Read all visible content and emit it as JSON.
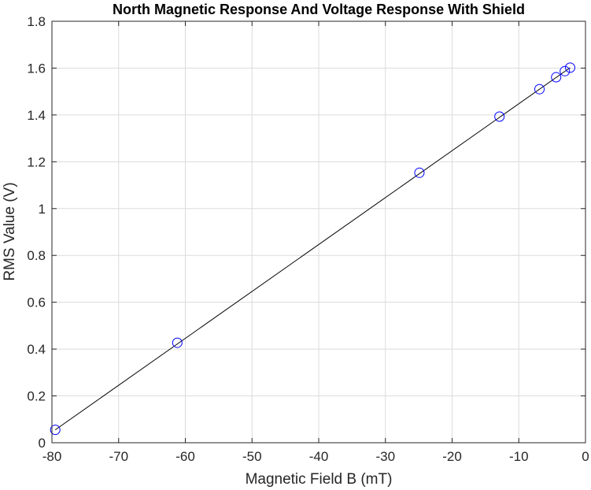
{
  "chart_data": {
    "type": "scatter",
    "title": "North Magnetic Response And Voltage Response With Shield",
    "xlabel": "Magnetic Field B (mT)",
    "ylabel": "RMS Value (V)",
    "xlim": [
      -80,
      0
    ],
    "ylim": [
      0,
      1.8
    ],
    "xticks": [
      -80,
      -70,
      -60,
      -50,
      -40,
      -30,
      -20,
      -10,
      0
    ],
    "yticks": [
      0,
      0.2,
      0.4,
      0.6,
      0.8,
      1,
      1.2,
      1.4,
      1.6,
      1.8
    ],
    "xtick_labels": [
      "-80",
      "-70",
      "-60",
      "-50",
      "-40",
      "-30",
      "-20",
      "-10",
      "0"
    ],
    "ytick_labels": [
      "0",
      "0.2",
      "0.4",
      "0.6",
      "0.8",
      "1",
      "1.2",
      "1.4",
      "1.6",
      "1.8"
    ],
    "grid": true,
    "series": [
      {
        "marker": "circle",
        "color": "#0000ff",
        "x": [
          -79.5,
          -61.2,
          -24.9,
          -12.9,
          -6.9,
          -4.4,
          -3.1,
          -2.3
        ],
        "y": [
          0.055,
          0.427,
          1.153,
          1.393,
          1.51,
          1.561,
          1.587,
          1.602
        ]
      },
      {
        "style": "line",
        "color": "#000000",
        "x": [
          -79.5,
          -2.3
        ],
        "y": [
          0.055,
          1.602
        ]
      }
    ]
  }
}
